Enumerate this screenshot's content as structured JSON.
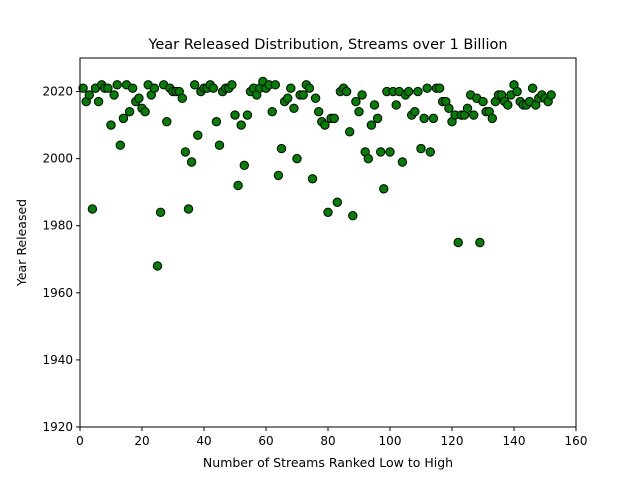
{
  "chart_data": {
    "type": "scatter",
    "title": "Year Released Distribution, Streams over 1 Billion",
    "xlabel": "Number of Streams Ranked Low to High",
    "ylabel": "Year Released",
    "xlim": [
      0,
      160
    ],
    "ylim": [
      1920,
      2030
    ],
    "xticks": [
      0,
      20,
      40,
      60,
      80,
      100,
      120,
      140,
      160
    ],
    "yticks": [
      1920,
      1940,
      1960,
      1980,
      2000,
      2020
    ],
    "grid": false,
    "marker_color": "#008000",
    "marker_edge_color": "#000000",
    "x": [
      1,
      2,
      3,
      4,
      5,
      6,
      7,
      8,
      9,
      10,
      11,
      12,
      13,
      14,
      15,
      16,
      17,
      18,
      19,
      20,
      21,
      22,
      23,
      24,
      25,
      26,
      27,
      28,
      29,
      30,
      31,
      32,
      33,
      34,
      35,
      36,
      37,
      38,
      39,
      40,
      41,
      42,
      43,
      44,
      45,
      46,
      47,
      48,
      49,
      50,
      51,
      52,
      53,
      54,
      55,
      56,
      57,
      58,
      59,
      60,
      61,
      62,
      63,
      64,
      65,
      66,
      67,
      68,
      69,
      70,
      71,
      72,
      73,
      74,
      75,
      76,
      77,
      78,
      79,
      80,
      81,
      82,
      83,
      84,
      85,
      86,
      87,
      88,
      89,
      90,
      91,
      92,
      93,
      94,
      95,
      96,
      97,
      98,
      99,
      100,
      101,
      102,
      103,
      104,
      105,
      106,
      107,
      108,
      109,
      110,
      111,
      112,
      113,
      114,
      115,
      116,
      117,
      118,
      119,
      120,
      121,
      122,
      123,
      124,
      125,
      126,
      127,
      128,
      129,
      130,
      131,
      132,
      133,
      134,
      135,
      136,
      137,
      138,
      139,
      140,
      141,
      142,
      143,
      144,
      145,
      146,
      147,
      148,
      149,
      150,
      151,
      152
    ],
    "y": [
      2021,
      2017,
      2019,
      1985,
      2021,
      2017,
      2022,
      2021,
      2021,
      2010,
      2019,
      2022,
      2004,
      2012,
      2022,
      2014,
      2021,
      2017,
      2018,
      2015,
      2014,
      2022,
      2019,
      2021,
      1968,
      1984,
      2022,
      2011,
      2021,
      2020,
      2020,
      2020,
      2018,
      2002,
      1985,
      1999,
      2022,
      2007,
      2020,
      2021,
      2021,
      2022,
      2021,
      2011,
      2004,
      2020,
      2021,
      2021,
      2022,
      2013,
      1992,
      2010,
      1998,
      2013,
      2020,
      2021,
      2019,
      2021,
      2023,
      2021,
      2022,
      2014,
      2022,
      1995,
      2003,
      2017,
      2018,
      2021,
      2015,
      2000,
      2019,
      2019,
      2022,
      2021,
      1994,
      2018,
      2014,
      2011,
      2010,
      1984,
      2012,
      2012,
      1987,
      2020,
      2021,
      2020,
      2008,
      1983,
      2017,
      2014,
      2019,
      2002,
      2000,
      2010,
      2016,
      2012,
      2002,
      1991,
      2020,
      2002,
      2020,
      2016,
      2020,
      1999,
      2019,
      2020,
      2013,
      2014,
      2020,
      2003,
      2012,
      2021,
      2002,
      2012,
      2021,
      2021,
      2017,
      2017,
      2015,
      2011,
      2013,
      1975,
      2013,
      2013,
      2015,
      2019,
      2013,
      2018,
      1975,
      2017,
      2014,
      2014,
      2012,
      2017,
      2019,
      2019,
      2017,
      2016,
      2019,
      2022,
      2020,
      2017,
      2016,
      2016,
      2017,
      2021,
      2016,
      2018,
      2019,
      2018,
      2017,
      2019
    ]
  }
}
